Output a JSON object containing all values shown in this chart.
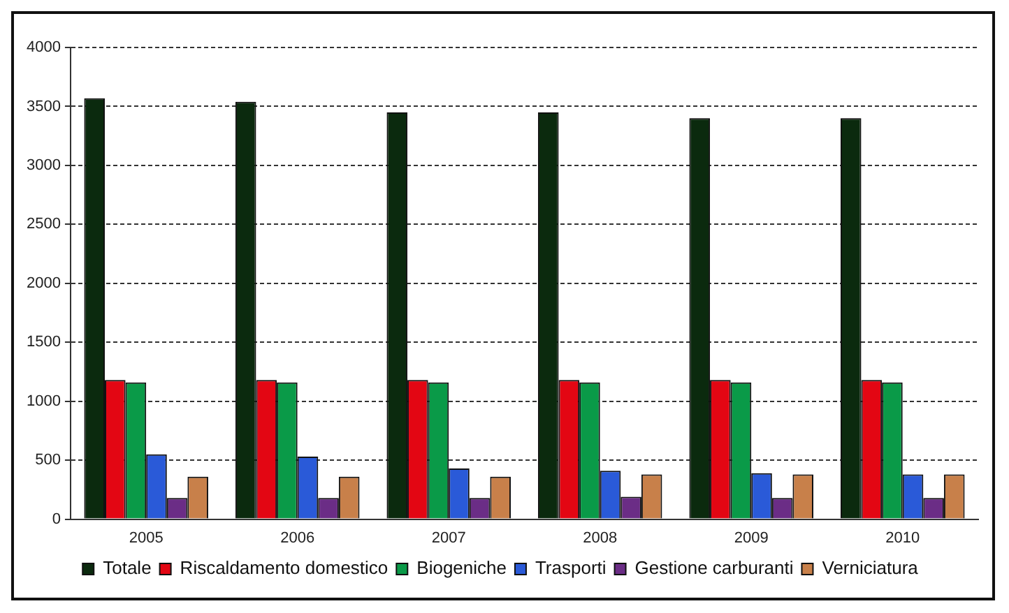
{
  "chart_data": {
    "type": "bar",
    "categories": [
      "2005",
      "2006",
      "2007",
      "2008",
      "2009",
      "2010"
    ],
    "series": [
      {
        "name": "Totale",
        "color": "#0b2a0e",
        "values": [
          3570,
          3540,
          3450,
          3450,
          3400,
          3400
        ]
      },
      {
        "name": "Riscaldamento domestico",
        "color": "#e30613",
        "values": [
          1180,
          1180,
          1180,
          1180,
          1180,
          1180
        ]
      },
      {
        "name": "Biogeniche",
        "color": "#0a9a48",
        "values": [
          1160,
          1160,
          1160,
          1160,
          1160,
          1160
        ]
      },
      {
        "name": "Trasporti",
        "color": "#2a5ad8",
        "values": [
          550,
          530,
          430,
          410,
          390,
          380
        ]
      },
      {
        "name": "Gestione carburanti",
        "color": "#6b2d86",
        "values": [
          180,
          180,
          180,
          190,
          180,
          180
        ]
      },
      {
        "name": "Verniciatura",
        "color": "#c8804a",
        "values": [
          360,
          360,
          360,
          380,
          380,
          380
        ]
      }
    ],
    "ylim": [
      0,
      4000
    ],
    "yticks": [
      0,
      500,
      1000,
      1500,
      2000,
      2500,
      3000,
      3500,
      4000
    ],
    "grid": "y",
    "legend": "bottom"
  }
}
